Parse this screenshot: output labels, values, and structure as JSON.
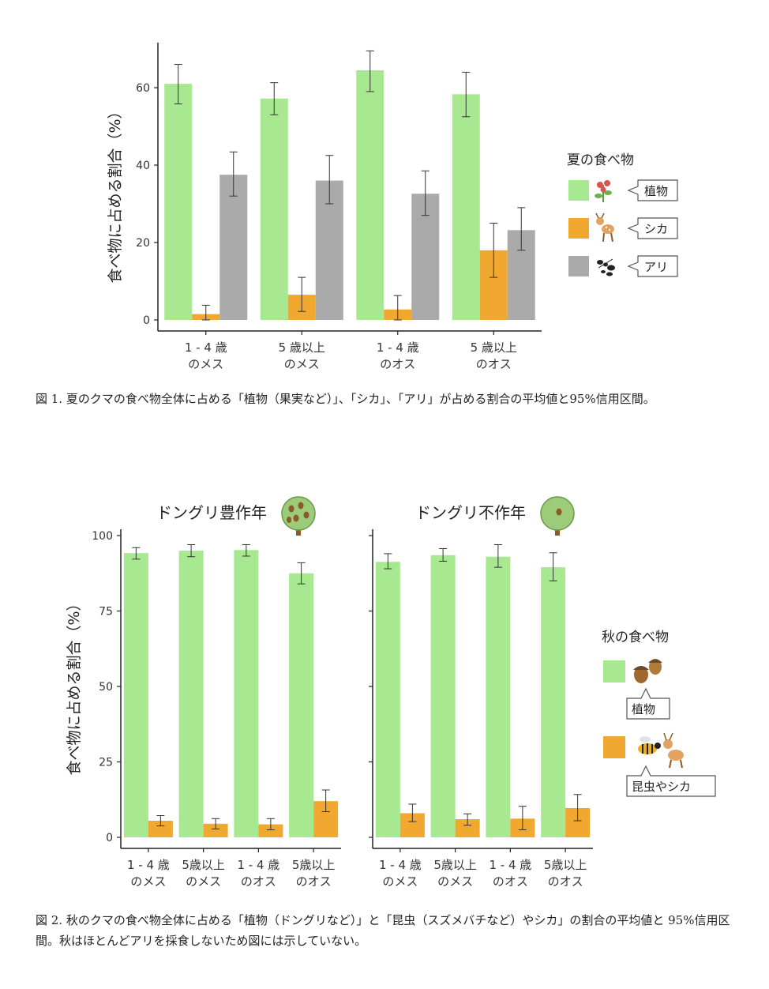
{
  "figure1": {
    "chart_data": {
      "type": "bar",
      "categories": [
        [
          "1 - 4 歳",
          "のメス"
        ],
        [
          "5 歳以上",
          "のメス"
        ],
        [
          "1 - 4 歳",
          "のオス"
        ],
        [
          "5 歳以上",
          "のオス"
        ]
      ],
      "series": [
        {
          "name": "植物",
          "color": "#a8e890",
          "values": [
            61,
            57.2,
            64.5,
            58.3
          ],
          "ci_low": [
            55.8,
            53,
            59,
            52.5
          ],
          "ci_high": [
            66,
            61.3,
            69.5,
            64
          ]
        },
        {
          "name": "シカ",
          "color": "#f0a830",
          "values": [
            1.5,
            6.5,
            2.7,
            18
          ],
          "ci_low": [
            0,
            2.2,
            0,
            11
          ],
          "ci_high": [
            3.8,
            11,
            6.3,
            25
          ]
        },
        {
          "name": "アリ",
          "color": "#aaaaaa",
          "values": [
            37.5,
            36,
            32.6,
            23.2
          ],
          "ci_low": [
            32,
            30,
            27,
            18
          ],
          "ci_high": [
            43.4,
            42.5,
            38.5,
            29
          ]
        }
      ],
      "ylabel": "食べ物に占める割合（%）",
      "ylim": [
        0,
        70
      ],
      "yticks": [
        0,
        20,
        40,
        60
      ],
      "legend_title": "夏の食べ物",
      "legend_icons": [
        "flower-icon",
        "deer-icon",
        "ant-icon"
      ]
    }
  },
  "caption1": "図 1.  夏のクマの食べ物全体に占める「植物（果実など）」、「シカ」、「アリ」が占める割合の平均値と95%信用区間。",
  "figure2": {
    "chart_data": [
      {
        "type": "bar",
        "title": "ドングリ豊作年",
        "title_icon": "acorn-tree-icon",
        "categories": [
          [
            "1 - 4 歳",
            "のメス"
          ],
          [
            "5歳以上",
            "のメス"
          ],
          [
            "1 - 4 歳",
            "のオス"
          ],
          [
            "5歳以上",
            "のオス"
          ]
        ],
        "series": [
          {
            "name": "植物",
            "color": "#a8e890",
            "values": [
              94.2,
              95,
              95.2,
              87.5
            ],
            "ci_low": [
              92.2,
              93,
              93.2,
              84
            ],
            "ci_high": [
              96,
              97,
              97,
              91
            ]
          },
          {
            "name": "昆虫やシカ",
            "color": "#f0a830",
            "values": [
              5.5,
              4.5,
              4.3,
              12
            ],
            "ci_low": [
              3.8,
              2.8,
              2.5,
              8.5
            ],
            "ci_high": [
              7.2,
              6.2,
              6.2,
              15.7
            ]
          }
        ],
        "ylim": [
          0,
          100
        ],
        "yticks": [
          0,
          25,
          50,
          75,
          100
        ]
      },
      {
        "type": "bar",
        "title": "ドングリ不作年",
        "title_icon": "tree-icon",
        "categories": [
          [
            "1 - 4 歳",
            "のメス"
          ],
          [
            "5歳以上",
            "のメス"
          ],
          [
            "1 - 4 歳",
            "のオス"
          ],
          [
            "5歳以上",
            "のオス"
          ]
        ],
        "series": [
          {
            "name": "植物",
            "color": "#a8e890",
            "values": [
              91.3,
              93.5,
              93,
              89.5
            ],
            "ci_low": [
              89,
              91.5,
              89.5,
              85
            ],
            "ci_high": [
              94,
              95.7,
              97,
              94.3
            ]
          },
          {
            "name": "昆虫やシカ",
            "color": "#f0a830",
            "values": [
              8,
              6,
              6.2,
              9.7
            ],
            "ci_low": [
              5.2,
              4,
              2.5,
              5.5
            ],
            "ci_high": [
              11,
              7.8,
              10.3,
              14.2
            ]
          }
        ],
        "ylim": [
          0,
          100
        ],
        "yticks": [
          0,
          25,
          50,
          75,
          100
        ]
      }
    ],
    "ylabel": "食べ物に占める割合（%）",
    "legend_title": "秋の食べ物",
    "legend_icons": [
      "acorn-icon",
      "wasp-deer-icon"
    ]
  },
  "caption2": "図 2.  秋のクマの食べ物全体に占める「植物（ドングリなど）」と「昆虫（スズメバチなど）やシカ」の割合の平均値と 95%信用区間。秋はほとんどアリを採食しないため図には示していない。"
}
